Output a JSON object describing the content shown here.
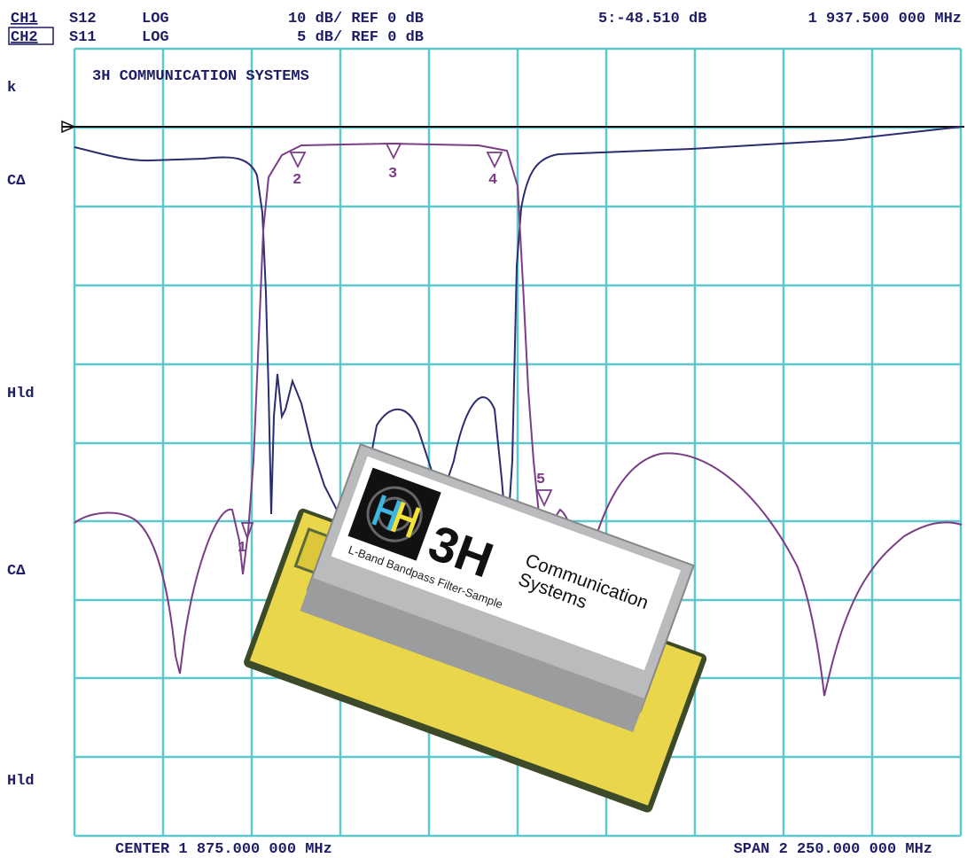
{
  "header": {
    "ch1": {
      "label": "CH1",
      "param": "S12",
      "format": "LOG",
      "scale": "10 dB/ REF 0 dB"
    },
    "ch2": {
      "label": "CH2",
      "param": "S11",
      "format": "LOG",
      "scale": "5 dB/ REF 0 dB"
    },
    "marker_readout": "5:-48.510 dB",
    "marker_frequency": "1 937.500 000 MHz"
  },
  "screen_title": "3H COMMUNICATION SYSTEMS",
  "left_labels": [
    "k",
    "CΔ",
    "Hld",
    "CΔ",
    "Hld"
  ],
  "markers": [
    "1",
    "2",
    "3",
    "4",
    "5"
  ],
  "footer": {
    "center": "CENTER 1 875.000 000 MHz",
    "span": "SPAN 2 250.000 000 MHz"
  },
  "product_label": {
    "logo": "3H",
    "line1": "Communication",
    "line2": "Systems",
    "subtitle": "L-Band Bandpass Filter-Sample"
  }
}
